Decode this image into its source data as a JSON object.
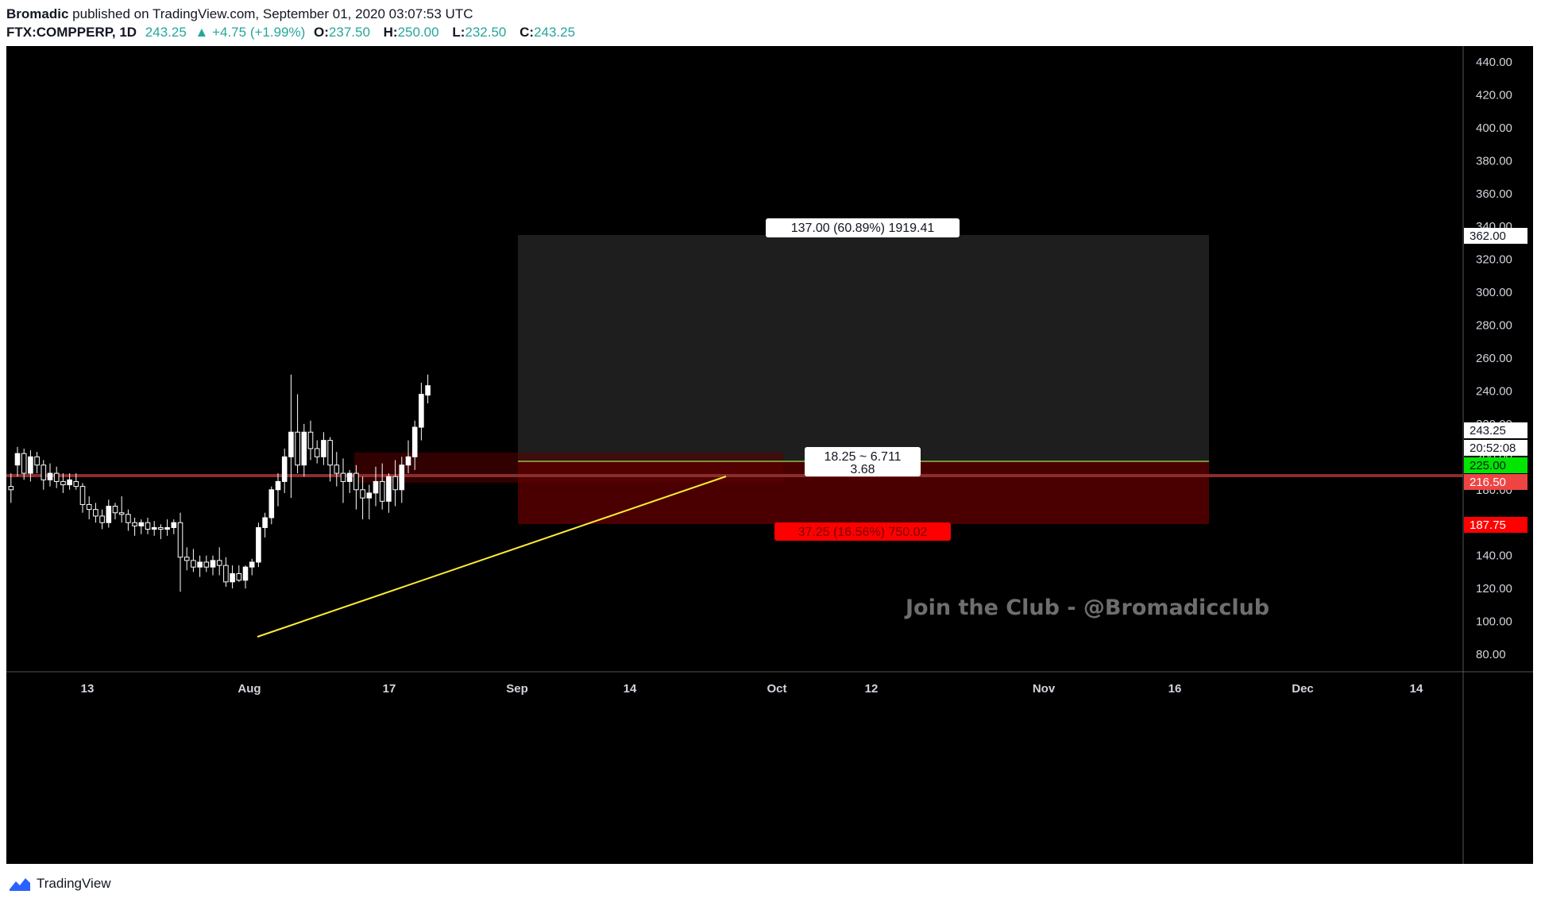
{
  "header": {
    "author": "Bromadic",
    "published": "published on TradingView.com, September 01, 2020 03:07:53 UTC",
    "symbol": "FTX:COMPPERP, 1D",
    "price": "243.25",
    "change": "▲ +4.75 (+1.99%)",
    "o_label": "O:",
    "o_value": "237.50",
    "h_label": "H:",
    "h_value": "250.00",
    "l_label": "L:",
    "l_value": "232.50",
    "c_label": "C:",
    "c_value": "243.25"
  },
  "footer": {
    "brand": "TradingView"
  },
  "watermark": "Join the Club - @Bromadicclub",
  "position": {
    "target_label": "137.00 (60.89%) 1919.41",
    "ratio_line1": "18.25 ~ 6.711",
    "ratio_line2": "3.68",
    "stop_label": "37.25 (16.56%) 750.02"
  },
  "price_tags": {
    "target": "362.00",
    "current": "243.25",
    "countdown": "20:52:08",
    "entry": "225.00",
    "level": "216.50",
    "stop": "187.75"
  },
  "colors": {
    "bg": "#000000",
    "candle": "#ffffff",
    "trendline": "#ffee33",
    "entry_line": "#8bc34a",
    "level_line": "#8b2d2d",
    "stop_tag": "#ff0000",
    "entry_tag": "#00e600"
  },
  "chart_data": {
    "type": "candlestick",
    "yaxis_ticks": [
      "80.00",
      "100.00",
      "120.00",
      "140.00",
      "160.00",
      "180.00",
      "200.00",
      "220.00",
      "240.00",
      "260.00",
      "280.00",
      "300.00",
      "320.00",
      "340.00",
      "360.00",
      "380.00",
      "400.00",
      "420.00",
      "440.00"
    ],
    "xaxis_ticks": [
      "13",
      "Aug",
      "17",
      "Sep",
      "14",
      "Oct",
      "12",
      "Nov",
      "16",
      "Dec",
      "14"
    ],
    "ylim": [
      70,
      455
    ],
    "candles": [
      [
        182,
        190,
        172,
        180
      ],
      [
        195,
        206,
        188,
        202
      ],
      [
        202,
        205,
        186,
        190
      ],
      [
        190,
        204,
        185,
        200
      ],
      [
        200,
        203,
        190,
        195
      ],
      [
        195,
        198,
        180,
        186
      ],
      [
        186,
        196,
        182,
        190
      ],
      [
        190,
        194,
        181,
        185
      ],
      [
        185,
        190,
        178,
        183
      ],
      [
        183,
        190,
        180,
        186
      ],
      [
        185,
        190,
        180,
        182
      ],
      [
        182,
        184,
        166,
        171
      ],
      [
        171,
        176,
        162,
        168
      ],
      [
        168,
        172,
        160,
        164
      ],
      [
        164,
        168,
        156,
        160
      ],
      [
        160,
        174,
        157,
        170
      ],
      [
        170,
        172,
        162,
        166
      ],
      [
        166,
        176,
        160,
        165
      ],
      [
        165,
        168,
        155,
        160
      ],
      [
        160,
        163,
        152,
        158
      ],
      [
        158,
        162,
        153,
        160
      ],
      [
        160,
        163,
        153,
        156
      ],
      [
        156,
        161,
        152,
        157
      ],
      [
        157,
        159,
        150,
        156
      ],
      [
        156,
        162,
        152,
        157
      ],
      [
        157,
        162,
        153,
        160
      ],
      [
        160,
        166,
        118,
        139
      ],
      [
        139,
        145,
        131,
        137
      ],
      [
        137,
        144,
        130,
        133
      ],
      [
        133,
        140,
        127,
        136
      ],
      [
        136,
        140,
        130,
        133
      ],
      [
        133,
        140,
        128,
        137
      ],
      [
        137,
        145,
        128,
        134
      ],
      [
        134,
        139,
        121,
        124
      ],
      [
        124,
        134,
        120,
        129
      ],
      [
        129,
        134,
        124,
        125
      ],
      [
        125,
        134,
        120,
        133
      ],
      [
        133,
        138,
        128,
        136
      ],
      [
        136,
        160,
        133,
        157
      ],
      [
        157,
        166,
        151,
        163
      ],
      [
        163,
        182,
        159,
        180
      ],
      [
        180,
        190,
        170,
        185
      ],
      [
        185,
        205,
        178,
        200
      ],
      [
        200,
        250,
        175,
        215
      ],
      [
        215,
        238,
        190,
        195
      ],
      [
        195,
        220,
        188,
        215
      ],
      [
        215,
        222,
        198,
        205
      ],
      [
        205,
        210,
        196,
        200
      ],
      [
        200,
        215,
        195,
        210
      ],
      [
        210,
        212,
        185,
        195
      ],
      [
        195,
        203,
        182,
        190
      ],
      [
        190,
        199,
        172,
        185
      ],
      [
        185,
        192,
        178,
        190
      ],
      [
        190,
        195,
        168,
        180
      ],
      [
        180,
        188,
        162,
        175
      ],
      [
        175,
        183,
        162,
        178
      ],
      [
        178,
        194,
        170,
        185
      ],
      [
        185,
        196,
        168,
        173
      ],
      [
        173,
        190,
        166,
        188
      ],
      [
        188,
        198,
        170,
        180
      ],
      [
        180,
        200,
        172,
        195
      ],
      [
        195,
        210,
        190,
        200
      ],
      [
        200,
        222,
        192,
        218
      ],
      [
        218,
        245,
        210,
        238
      ],
      [
        237.5,
        250,
        232.5,
        243.25
      ]
    ]
  }
}
